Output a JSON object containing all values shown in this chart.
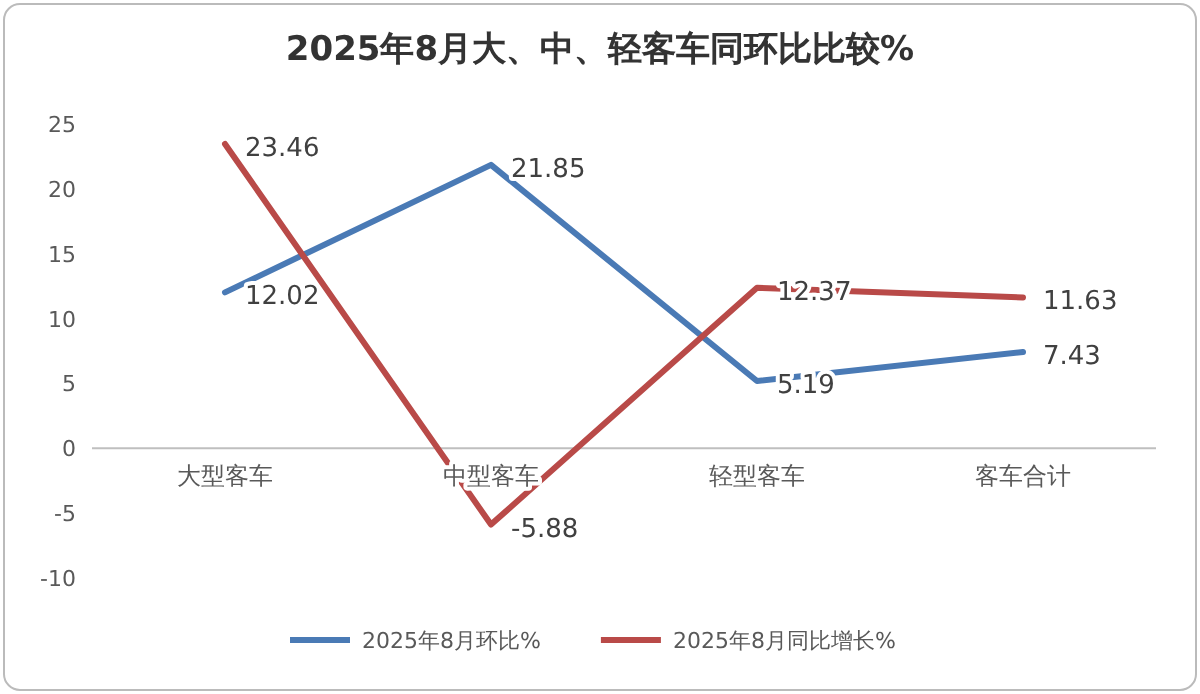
{
  "chart_data": {
    "type": "line",
    "title": "2025年8月大、中、轻客车同环比比较%",
    "categories": [
      "大型客车",
      "中型客车",
      "轻型客车",
      "客车合计"
    ],
    "series": [
      {
        "name": "2025年8月环比%",
        "color": "#4a7ab5",
        "values": [
          12.02,
          21.85,
          5.19,
          7.43
        ]
      },
      {
        "name": "2025年8月同比增长%",
        "color": "#b94a48",
        "values": [
          23.46,
          -5.88,
          12.37,
          11.63
        ]
      }
    ],
    "ylim": [
      -10,
      25
    ],
    "yticks": [
      -10,
      -5,
      0,
      5,
      10,
      15,
      20,
      25
    ],
    "grid": false,
    "legend": "bottom",
    "data_labels": true,
    "marker": "none"
  }
}
